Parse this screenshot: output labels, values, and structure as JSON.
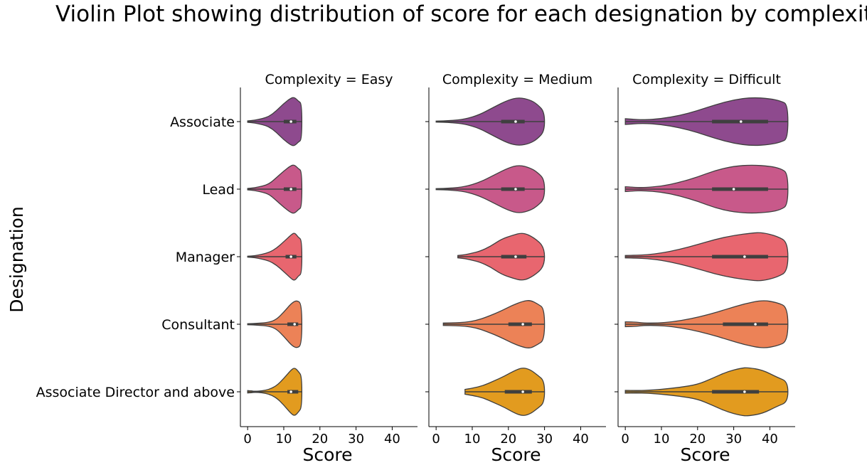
{
  "chart_data": {
    "type": "violin",
    "title": "Violin Plot showing distribution of score for each designation by complexity",
    "ylabel": "Designation",
    "xlabel": "Score",
    "xlim": [
      -2,
      47
    ],
    "xticks": [
      0,
      10,
      20,
      30,
      40
    ],
    "categories": [
      "Associate",
      "Lead",
      "Manager",
      "Consultant",
      "Associate Director and above"
    ],
    "colors": {
      "Associate": "#8e4a8e",
      "Lead": "#c8598a",
      "Manager": "#e8666f",
      "Consultant": "#ec8257",
      "Associate Director and above": "#e29b1f"
    },
    "panels": [
      {
        "title": "Complexity = Easy",
        "show_xlabel": true,
        "violins": [
          {
            "category": "Associate",
            "min": 0,
            "max": 15,
            "q1": 10,
            "median": 12,
            "q3": 13.5,
            "whisker_lo": 5,
            "whisker_hi": 15,
            "profile": [
              [
                0,
                0.03
              ],
              [
                2,
                0.06
              ],
              [
                4,
                0.12
              ],
              [
                6,
                0.22
              ],
              [
                8,
                0.45
              ],
              [
                10,
                0.75
              ],
              [
                12,
                0.98
              ],
              [
                13,
                1.0
              ],
              [
                14,
                0.85
              ],
              [
                15,
                0.75
              ]
            ]
          },
          {
            "category": "Lead",
            "min": 0,
            "max": 15,
            "q1": 10,
            "median": 12,
            "q3": 13.5,
            "whisker_lo": 5,
            "whisker_hi": 15,
            "profile": [
              [
                0,
                0.03
              ],
              [
                2,
                0.06
              ],
              [
                4,
                0.12
              ],
              [
                6,
                0.22
              ],
              [
                8,
                0.48
              ],
              [
                10,
                0.75
              ],
              [
                12,
                0.98
              ],
              [
                13,
                1.0
              ],
              [
                14,
                0.85
              ],
              [
                15,
                0.75
              ]
            ]
          },
          {
            "category": "Manager",
            "min": 0,
            "max": 15,
            "q1": 10.5,
            "median": 12,
            "q3": 13.5,
            "whisker_lo": 6,
            "whisker_hi": 15,
            "profile": [
              [
                0,
                0.02
              ],
              [
                2,
                0.04
              ],
              [
                4,
                0.1
              ],
              [
                6,
                0.18
              ],
              [
                8,
                0.35
              ],
              [
                10,
                0.62
              ],
              [
                12,
                0.9
              ],
              [
                13,
                1.0
              ],
              [
                14,
                0.8
              ],
              [
                15,
                0.7
              ]
            ]
          },
          {
            "category": "Consultant",
            "min": 0,
            "max": 15,
            "q1": 11,
            "median": 13,
            "q3": 14,
            "whisker_lo": 7,
            "whisker_hi": 15,
            "profile": [
              [
                0,
                0.02
              ],
              [
                3,
                0.04
              ],
              [
                6,
                0.08
              ],
              [
                8,
                0.2
              ],
              [
                10,
                0.5
              ],
              [
                12,
                0.85
              ],
              [
                13.5,
                1.0
              ],
              [
                15,
                0.85
              ]
            ]
          },
          {
            "category": "Associate Director and above",
            "min": 0,
            "max": 15,
            "q1": 11,
            "median": 12,
            "q3": 14,
            "whisker_lo": 7,
            "whisker_hi": 15,
            "profile": [
              [
                0,
                0.05
              ],
              [
                1,
                0.04
              ],
              [
                2,
                0.02
              ],
              [
                4,
                0.04
              ],
              [
                6,
                0.1
              ],
              [
                8,
                0.25
              ],
              [
                10,
                0.55
              ],
              [
                12,
                0.9
              ],
              [
                13,
                1.0
              ],
              [
                14,
                0.85
              ],
              [
                15,
                0.65
              ]
            ]
          }
        ]
      },
      {
        "title": "Complexity = Medium",
        "show_xlabel": true,
        "violins": [
          {
            "category": "Associate",
            "min": 0,
            "max": 30,
            "q1": 18,
            "median": 22,
            "q3": 24.5,
            "whisker_lo": 10,
            "whisker_hi": 30,
            "profile": [
              [
                0,
                0.02
              ],
              [
                4,
                0.04
              ],
              [
                8,
                0.1
              ],
              [
                12,
                0.28
              ],
              [
                16,
                0.6
              ],
              [
                20,
                0.9
              ],
              [
                23,
                1.0
              ],
              [
                26,
                0.9
              ],
              [
                28,
                0.72
              ],
              [
                30,
                0.4
              ]
            ]
          },
          {
            "category": "Lead",
            "min": 0,
            "max": 30,
            "q1": 18,
            "median": 22,
            "q3": 24.5,
            "whisker_lo": 10,
            "whisker_hi": 30,
            "profile": [
              [
                0,
                0.02
              ],
              [
                4,
                0.04
              ],
              [
                8,
                0.1
              ],
              [
                12,
                0.28
              ],
              [
                16,
                0.58
              ],
              [
                20,
                0.88
              ],
              [
                23,
                1.0
              ],
              [
                26,
                0.88
              ],
              [
                28,
                0.7
              ],
              [
                30,
                0.4
              ]
            ]
          },
          {
            "category": "Manager",
            "min": 6,
            "max": 30,
            "q1": 18,
            "median": 22,
            "q3": 25,
            "whisker_lo": 10,
            "whisker_hi": 30,
            "profile": [
              [
                6,
                0.05
              ],
              [
                8,
                0.08
              ],
              [
                10,
                0.15
              ],
              [
                12,
                0.22
              ],
              [
                15,
                0.42
              ],
              [
                18,
                0.72
              ],
              [
                21,
                0.88
              ],
              [
                24,
                1.0
              ],
              [
                27,
                0.8
              ],
              [
                30,
                0.4
              ]
            ]
          },
          {
            "category": "Consultant",
            "min": 2,
            "max": 30,
            "q1": 20,
            "median": 24,
            "q3": 26.5,
            "whisker_lo": 12,
            "whisker_hi": 30,
            "profile": [
              [
                2,
                0.05
              ],
              [
                5,
                0.06
              ],
              [
                8,
                0.08
              ],
              [
                11,
                0.15
              ],
              [
                14,
                0.3
              ],
              [
                18,
                0.55
              ],
              [
                21,
                0.78
              ],
              [
                24,
                0.95
              ],
              [
                26,
                1.0
              ],
              [
                28,
                0.85
              ],
              [
                30,
                0.65
              ]
            ]
          },
          {
            "category": "Associate Director and above",
            "min": 8,
            "max": 30,
            "q1": 19,
            "median": 24,
            "q3": 26.5,
            "whisker_lo": 10,
            "whisker_hi": 30,
            "profile": [
              [
                8,
                0.1
              ],
              [
                10,
                0.15
              ],
              [
                13,
                0.25
              ],
              [
                16,
                0.45
              ],
              [
                19,
                0.65
              ],
              [
                22,
                0.9
              ],
              [
                24,
                1.0
              ],
              [
                26,
                0.92
              ],
              [
                28,
                0.7
              ],
              [
                30,
                0.45
              ]
            ]
          }
        ]
      },
      {
        "title": "Complexity = Difficult",
        "show_xlabel": true,
        "violins": [
          {
            "category": "Associate",
            "min": 0,
            "max": 45,
            "q1": 24,
            "median": 32,
            "q3": 39.5,
            "whisker_lo": 0,
            "whisker_hi": 45,
            "profile": [
              [
                0,
                0.12
              ],
              [
                2,
                0.1
              ],
              [
                5,
                0.07
              ],
              [
                10,
                0.12
              ],
              [
                15,
                0.25
              ],
              [
                20,
                0.45
              ],
              [
                25,
                0.7
              ],
              [
                30,
                0.9
              ],
              [
                35,
                1.0
              ],
              [
                40,
                0.95
              ],
              [
                43,
                0.85
              ],
              [
                45,
                0.7
              ]
            ]
          },
          {
            "category": "Lead",
            "min": 0,
            "max": 45,
            "q1": 24,
            "median": 30,
            "q3": 39.5,
            "whisker_lo": 0,
            "whisker_hi": 45,
            "profile": [
              [
                0,
                0.1
              ],
              [
                2,
                0.08
              ],
              [
                5,
                0.06
              ],
              [
                10,
                0.12
              ],
              [
                15,
                0.28
              ],
              [
                20,
                0.5
              ],
              [
                25,
                0.78
              ],
              [
                30,
                0.95
              ],
              [
                35,
                1.0
              ],
              [
                40,
                0.95
              ],
              [
                43,
                0.85
              ],
              [
                45,
                0.65
              ]
            ]
          },
          {
            "category": "Manager",
            "min": 0,
            "max": 45,
            "q1": 24,
            "median": 33,
            "q3": 39.5,
            "whisker_lo": 0,
            "whisker_hi": 45,
            "profile": [
              [
                0,
                0.05
              ],
              [
                3,
                0.06
              ],
              [
                6,
                0.08
              ],
              [
                10,
                0.15
              ],
              [
                15,
                0.3
              ],
              [
                20,
                0.5
              ],
              [
                25,
                0.72
              ],
              [
                30,
                0.88
              ],
              [
                35,
                0.98
              ],
              [
                38,
                1.0
              ],
              [
                42,
                0.85
              ],
              [
                45,
                0.6
              ]
            ]
          },
          {
            "category": "Consultant",
            "min": 0,
            "max": 45,
            "q1": 27,
            "median": 36,
            "q3": 39.5,
            "whisker_lo": 12,
            "whisker_hi": 45,
            "profile": [
              [
                0,
                0.1
              ],
              [
                3,
                0.09
              ],
              [
                5,
                0.05
              ],
              [
                9,
                0.05
              ],
              [
                13,
                0.1
              ],
              [
                18,
                0.22
              ],
              [
                23,
                0.4
              ],
              [
                28,
                0.62
              ],
              [
                33,
                0.85
              ],
              [
                38,
                1.0
              ],
              [
                42,
                0.9
              ],
              [
                45,
                0.7
              ]
            ]
          },
          {
            "category": "Associate Director and above",
            "min": 0,
            "max": 45,
            "q1": 24,
            "median": 33,
            "q3": 37,
            "whisker_lo": 6,
            "whisker_hi": 45,
            "profile": [
              [
                0,
                0.06
              ],
              [
                3,
                0.05
              ],
              [
                6,
                0.06
              ],
              [
                10,
                0.1
              ],
              [
                15,
                0.18
              ],
              [
                20,
                0.3
              ],
              [
                24,
                0.55
              ],
              [
                28,
                0.82
              ],
              [
                32,
                0.98
              ],
              [
                34,
                1.0
              ],
              [
                38,
                0.9
              ],
              [
                42,
                0.6
              ],
              [
                45,
                0.42
              ]
            ]
          }
        ]
      }
    ]
  }
}
